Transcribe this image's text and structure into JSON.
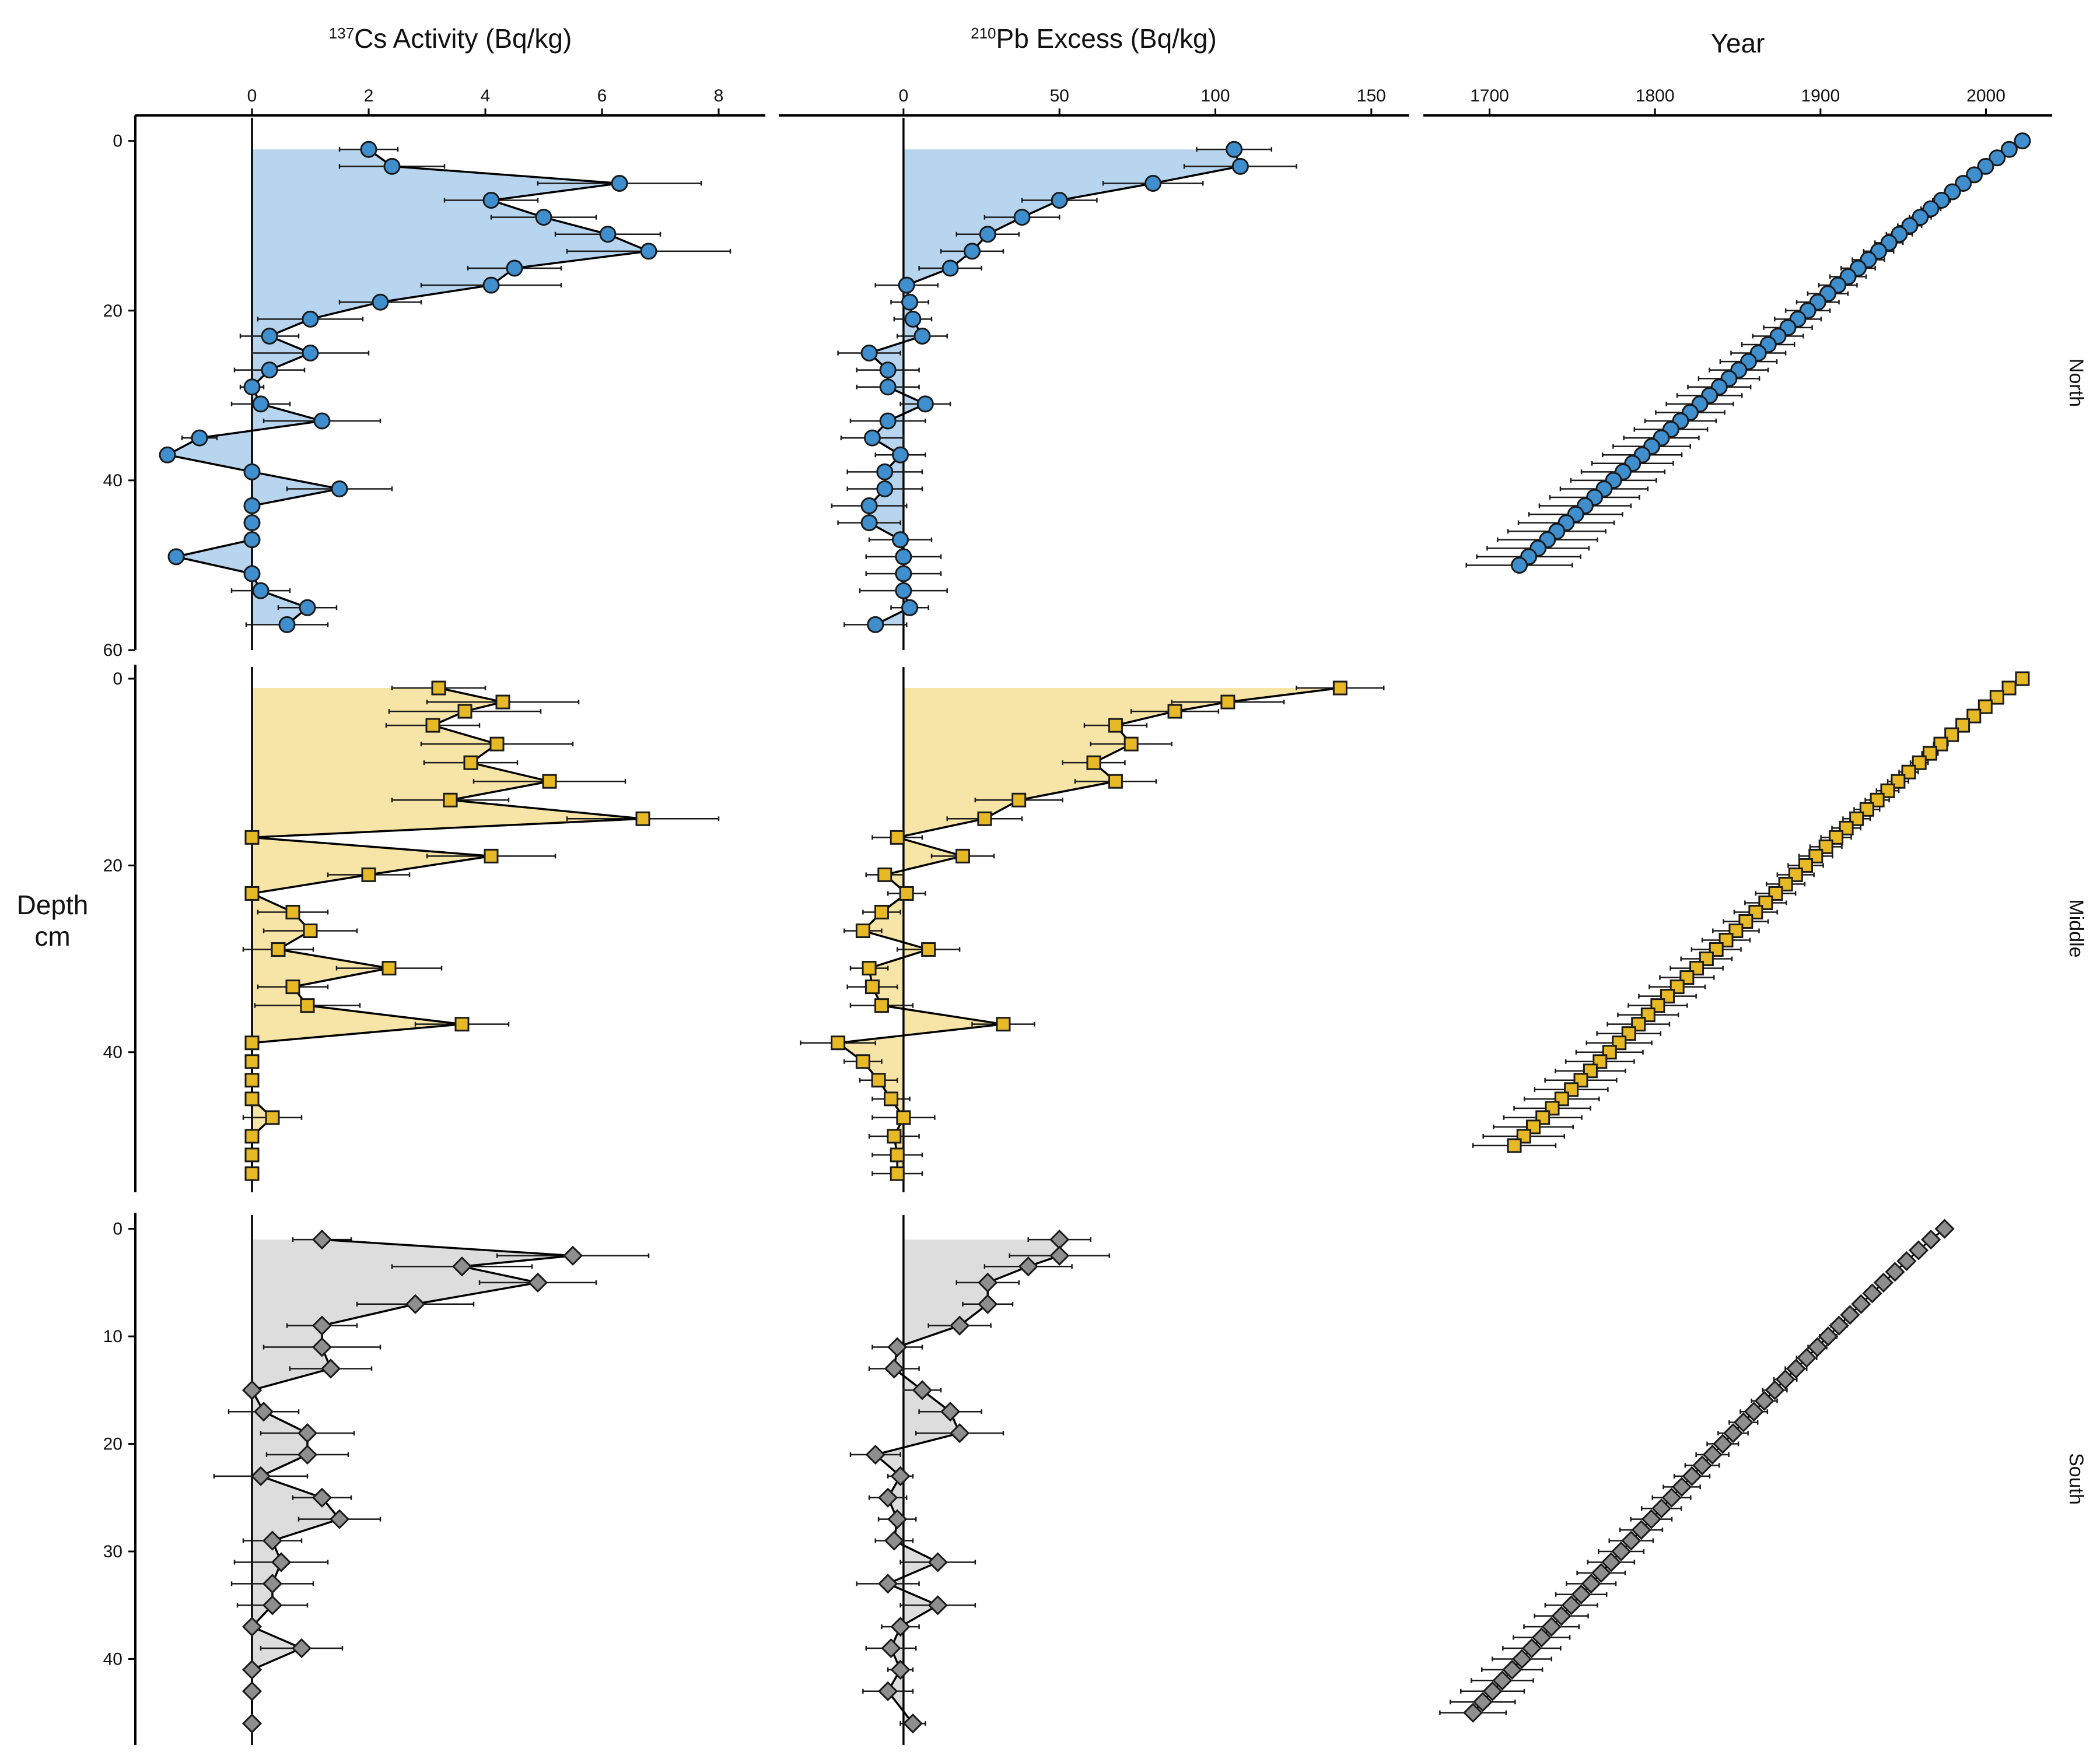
{
  "chart_data": {
    "type": "scatter",
    "ylabel": [
      "Depth",
      "cm"
    ],
    "columns": [
      {
        "id": "cs",
        "title_sup": "137",
        "title_main": "Cs Activity (Bq/kg)",
        "xlim": [
          -2.0,
          8.8
        ],
        "xticks": [
          0,
          2,
          4,
          6,
          8
        ]
      },
      {
        "id": "pb",
        "title_sup": "210",
        "title_main": "Pb Excess (Bq/kg)",
        "xlim": [
          -40,
          162
        ],
        "xticks": [
          0,
          50,
          100,
          150
        ]
      },
      {
        "id": "year",
        "title_sup": "",
        "title_main": "Year",
        "xlim": [
          1660,
          2040
        ],
        "xticks": [
          1700,
          1800,
          1900,
          2000
        ]
      }
    ],
    "sites": [
      {
        "name": "North",
        "marker": "circle",
        "fill": "#3F8FCF",
        "band": "#B7D5EE",
        "ylim": [
          60,
          -3
        ],
        "yticks": [
          0,
          20,
          40,
          60
        ],
        "cs": [
          {
            "y": 1,
            "x": 2.0,
            "err": 0.5
          },
          {
            "y": 3,
            "x": 2.4,
            "err": 0.9
          },
          {
            "y": 5,
            "x": 6.3,
            "err": 1.4
          },
          {
            "y": 7,
            "x": 4.1,
            "err": 0.8
          },
          {
            "y": 9,
            "x": 5.0,
            "err": 0.9
          },
          {
            "y": 11,
            "x": 6.1,
            "err": 0.9
          },
          {
            "y": 13,
            "x": 6.8,
            "err": 1.4
          },
          {
            "y": 15,
            "x": 4.5,
            "err": 0.8
          },
          {
            "y": 17,
            "x": 4.1,
            "err": 1.2
          },
          {
            "y": 19,
            "x": 2.2,
            "err": 0.7
          },
          {
            "y": 21,
            "x": 1.0,
            "err": 0.9
          },
          {
            "y": 23,
            "x": 0.3,
            "err": 0.5
          },
          {
            "y": 25,
            "x": 1.0,
            "err": 1.0
          },
          {
            "y": 27,
            "x": 0.3,
            "err": 0.6
          },
          {
            "y": 29,
            "x": 0.0,
            "err": 0.2
          },
          {
            "y": 31,
            "x": 0.15,
            "err": 0.5
          },
          {
            "y": 33,
            "x": 1.2,
            "err": 1.0
          },
          {
            "y": 35,
            "x": -0.9,
            "err": 0.3
          },
          {
            "y": 37,
            "x": -1.45,
            "err": 0.1
          },
          {
            "y": 39,
            "x": 0.0,
            "err": 0.1
          },
          {
            "y": 41,
            "x": 1.5,
            "err": 0.9
          },
          {
            "y": 43,
            "x": 0.0,
            "err": 0.1
          },
          {
            "y": 45,
            "x": 0.0,
            "err": 0.1
          },
          {
            "y": 47,
            "x": 0.0,
            "err": 0.1
          },
          {
            "y": 49,
            "x": -1.3,
            "err": 0.1
          },
          {
            "y": 51,
            "x": 0.0,
            "err": 0.1
          },
          {
            "y": 53,
            "x": 0.15,
            "err": 0.5
          },
          {
            "y": 55,
            "x": 0.95,
            "err": 0.5
          },
          {
            "y": 57,
            "x": 0.6,
            "err": 0.7
          }
        ],
        "pb": [
          {
            "y": 1,
            "x": 106,
            "err": 12
          },
          {
            "y": 3,
            "x": 108,
            "err": 18
          },
          {
            "y": 5,
            "x": 80,
            "err": 16
          },
          {
            "y": 7,
            "x": 50,
            "err": 12
          },
          {
            "y": 9,
            "x": 38,
            "err": 12
          },
          {
            "y": 11,
            "x": 27,
            "err": 10
          },
          {
            "y": 13,
            "x": 22,
            "err": 10
          },
          {
            "y": 15,
            "x": 15,
            "err": 10
          },
          {
            "y": 17,
            "x": 1,
            "err": 10
          },
          {
            "y": 19,
            "x": 2,
            "err": 6
          },
          {
            "y": 21,
            "x": 3,
            "err": 6
          },
          {
            "y": 23,
            "x": 6,
            "err": 8
          },
          {
            "y": 25,
            "x": -11,
            "err": 10
          },
          {
            "y": 27,
            "x": -5,
            "err": 10
          },
          {
            "y": 29,
            "x": -5,
            "err": 10
          },
          {
            "y": 31,
            "x": 7,
            "err": 8
          },
          {
            "y": 33,
            "x": -5,
            "err": 12
          },
          {
            "y": 35,
            "x": -10,
            "err": 10
          },
          {
            "y": 37,
            "x": -1,
            "err": 8
          },
          {
            "y": 39,
            "x": -6,
            "err": 12
          },
          {
            "y": 41,
            "x": -6,
            "err": 12
          },
          {
            "y": 43,
            "x": -11,
            "err": 12
          },
          {
            "y": 45,
            "x": -11,
            "err": 10
          },
          {
            "y": 47,
            "x": -1,
            "err": 10
          },
          {
            "y": 49,
            "x": 0,
            "err": 12
          },
          {
            "y": 51,
            "x": 0,
            "err": 12
          },
          {
            "y": 53,
            "x": 0,
            "err": 14
          },
          {
            "y": 55,
            "x": 2,
            "err": 6
          },
          {
            "y": 57,
            "x": -9,
            "err": 10
          }
        ],
        "year": {
          "ys": [
            0,
            1,
            2,
            3,
            4,
            5,
            6,
            7,
            8,
            9,
            10,
            11,
            12,
            13,
            14,
            15,
            16,
            17,
            18,
            19,
            20,
            21,
            22,
            23,
            24,
            25,
            26,
            27,
            28,
            29,
            30,
            31,
            32,
            33,
            34,
            35,
            36,
            37,
            38,
            39,
            40,
            41,
            42,
            43,
            44,
            45,
            46,
            47,
            48,
            49,
            50
          ],
          "top": 2022,
          "bottom": 1718,
          "err_top": 1,
          "err_bottom": 32
        }
      },
      {
        "name": "Middle",
        "marker": "square",
        "fill": "#E8B927",
        "band": "#F7E4A7",
        "ylim": [
          55,
          -1.5
        ],
        "yticks": [
          0,
          20,
          40
        ],
        "cs": [
          {
            "y": 1,
            "x": 3.2,
            "err": 0.8
          },
          {
            "y": 2.5,
            "x": 4.3,
            "err": 1.3
          },
          {
            "y": 3.5,
            "x": 3.65,
            "err": 1.3
          },
          {
            "y": 5,
            "x": 3.1,
            "err": 0.8
          },
          {
            "y": 7,
            "x": 4.2,
            "err": 1.3
          },
          {
            "y": 9,
            "x": 3.75,
            "err": 0.8
          },
          {
            "y": 11,
            "x": 5.1,
            "err": 1.3
          },
          {
            "y": 13,
            "x": 3.4,
            "err": 1.0
          },
          {
            "y": 15,
            "x": 6.7,
            "err": 1.3
          },
          {
            "y": 17,
            "x": 0.0,
            "err": 0.1
          },
          {
            "y": 19,
            "x": 4.1,
            "err": 1.1
          },
          {
            "y": 21,
            "x": 2.0,
            "err": 0.7
          },
          {
            "y": 23,
            "x": 0.0,
            "err": 0.1
          },
          {
            "y": 25,
            "x": 0.7,
            "err": 0.6
          },
          {
            "y": 27,
            "x": 1.0,
            "err": 0.8
          },
          {
            "y": 29,
            "x": 0.45,
            "err": 0.6
          },
          {
            "y": 31,
            "x": 2.35,
            "err": 0.9
          },
          {
            "y": 33,
            "x": 0.7,
            "err": 0.6
          },
          {
            "y": 35,
            "x": 0.95,
            "err": 0.9
          },
          {
            "y": 37,
            "x": 3.6,
            "err": 0.8
          },
          {
            "y": 39,
            "x": 0.0,
            "err": 0.1
          },
          {
            "y": 41,
            "x": 0.0,
            "err": 0.1
          },
          {
            "y": 43,
            "x": 0.0,
            "err": 0.1
          },
          {
            "y": 45,
            "x": 0.0,
            "err": 0.1
          },
          {
            "y": 47,
            "x": 0.35,
            "err": 0.5
          },
          {
            "y": 49,
            "x": 0.0,
            "err": 0.1
          },
          {
            "y": 51,
            "x": 0.0,
            "err": 0.1
          },
          {
            "y": 53,
            "x": 0.0,
            "err": 0.1
          }
        ],
        "pb": [
          {
            "y": 1,
            "x": 140,
            "err": 14
          },
          {
            "y": 2.5,
            "x": 104,
            "err": 18
          },
          {
            "y": 3.5,
            "x": 87,
            "err": 14
          },
          {
            "y": 5,
            "x": 68,
            "err": 10
          },
          {
            "y": 7,
            "x": 73,
            "err": 13
          },
          {
            "y": 9,
            "x": 61,
            "err": 10
          },
          {
            "y": 11,
            "x": 68,
            "err": 13
          },
          {
            "y": 13,
            "x": 37,
            "err": 14
          },
          {
            "y": 15,
            "x": 26,
            "err": 12
          },
          {
            "y": 17,
            "x": -2,
            "err": 8
          },
          {
            "y": 19,
            "x": 19,
            "err": 10
          },
          {
            "y": 21,
            "x": -6,
            "err": 6
          },
          {
            "y": 23,
            "x": 1,
            "err": 6
          },
          {
            "y": 25,
            "x": -7,
            "err": 6
          },
          {
            "y": 27,
            "x": -13,
            "err": 6
          },
          {
            "y": 29,
            "x": 8,
            "err": 10
          },
          {
            "y": 31,
            "x": -11,
            "err": 6
          },
          {
            "y": 33,
            "x": -10,
            "err": 8
          },
          {
            "y": 35,
            "x": -7,
            "err": 10
          },
          {
            "y": 37,
            "x": 32,
            "err": 10
          },
          {
            "y": 39,
            "x": -21,
            "err": 12
          },
          {
            "y": 41,
            "x": -13,
            "err": 6
          },
          {
            "y": 43,
            "x": -8,
            "err": 6
          },
          {
            "y": 45,
            "x": -4,
            "err": 6
          },
          {
            "y": 47,
            "x": 0,
            "err": 10
          },
          {
            "y": 49,
            "x": -3,
            "err": 8
          },
          {
            "y": 51,
            "x": -2,
            "err": 8
          },
          {
            "y": 53,
            "x": -2,
            "err": 8
          }
        ],
        "year": {
          "ys": [
            0,
            1,
            2,
            3,
            4,
            5,
            6,
            7,
            8,
            9,
            10,
            11,
            12,
            13,
            14,
            15,
            16,
            17,
            18,
            19,
            20,
            21,
            22,
            23,
            24,
            25,
            26,
            27,
            28,
            29,
            30,
            31,
            32,
            33,
            34,
            35,
            36,
            37,
            38,
            39,
            40,
            41,
            42,
            43,
            44,
            45,
            46,
            47,
            48,
            49,
            50
          ],
          "top": 2022,
          "bottom": 1715,
          "err_top": 1,
          "err_bottom": 25
        }
      },
      {
        "name": "South",
        "marker": "diamond",
        "fill": "#8E8E8E",
        "band": "#DDDDDD",
        "ylim": [
          48,
          -1.5
        ],
        "yticks": [
          0,
          10,
          20,
          30,
          40
        ],
        "cs": [
          {
            "y": 1,
            "x": 1.2,
            "err": 0.5
          },
          {
            "y": 2.5,
            "x": 5.5,
            "err": 1.3
          },
          {
            "y": 3.5,
            "x": 3.6,
            "err": 1.2
          },
          {
            "y": 5,
            "x": 4.9,
            "err": 1.0
          },
          {
            "y": 7,
            "x": 2.8,
            "err": 1.0
          },
          {
            "y": 9,
            "x": 1.2,
            "err": 0.6
          },
          {
            "y": 11,
            "x": 1.2,
            "err": 1.0
          },
          {
            "y": 13,
            "x": 1.35,
            "err": 0.7
          },
          {
            "y": 15,
            "x": 0.0,
            "err": 0.1
          },
          {
            "y": 17,
            "x": 0.2,
            "err": 0.6
          },
          {
            "y": 19,
            "x": 0.95,
            "err": 0.8
          },
          {
            "y": 21,
            "x": 0.95,
            "err": 0.7
          },
          {
            "y": 23,
            "x": 0.15,
            "err": 0.8
          },
          {
            "y": 25,
            "x": 1.2,
            "err": 0.5
          },
          {
            "y": 27,
            "x": 1.5,
            "err": 0.7
          },
          {
            "y": 29,
            "x": 0.35,
            "err": 0.5
          },
          {
            "y": 31,
            "x": 0.5,
            "err": 0.8
          },
          {
            "y": 33,
            "x": 0.35,
            "err": 0.7
          },
          {
            "y": 35,
            "x": 0.35,
            "err": 0.6
          },
          {
            "y": 37,
            "x": 0.0,
            "err": 0.1
          },
          {
            "y": 39,
            "x": 0.85,
            "err": 0.7
          },
          {
            "y": 41,
            "x": 0.0,
            "err": 0.1
          },
          {
            "y": 43,
            "x": 0.0,
            "err": 0.1
          },
          {
            "y": 46,
            "x": 0.0,
            "err": 0.1
          }
        ],
        "pb": [
          {
            "y": 1,
            "x": 50,
            "err": 10
          },
          {
            "y": 2.5,
            "x": 50,
            "err": 16
          },
          {
            "y": 3.5,
            "x": 40,
            "err": 14
          },
          {
            "y": 5,
            "x": 27,
            "err": 10
          },
          {
            "y": 7,
            "x": 27,
            "err": 8
          },
          {
            "y": 9,
            "x": 18,
            "err": 10
          },
          {
            "y": 11,
            "x": -2,
            "err": 8
          },
          {
            "y": 13,
            "x": -3,
            "err": 8
          },
          {
            "y": 15,
            "x": 6,
            "err": 6
          },
          {
            "y": 17,
            "x": 15,
            "err": 10
          },
          {
            "y": 19,
            "x": 18,
            "err": 14
          },
          {
            "y": 21,
            "x": -9,
            "err": 8
          },
          {
            "y": 23,
            "x": -1,
            "err": 4
          },
          {
            "y": 25,
            "x": -5,
            "err": 6
          },
          {
            "y": 27,
            "x": -2,
            "err": 6
          },
          {
            "y": 29,
            "x": -3,
            "err": 6
          },
          {
            "y": 31,
            "x": 11,
            "err": 12
          },
          {
            "y": 33,
            "x": -5,
            "err": 10
          },
          {
            "y": 35,
            "x": 11,
            "err": 12
          },
          {
            "y": 37,
            "x": -1,
            "err": 6
          },
          {
            "y": 39,
            "x": -4,
            "err": 8
          },
          {
            "y": 41,
            "x": -1,
            "err": 4
          },
          {
            "y": 43,
            "x": -5,
            "err": 8
          },
          {
            "y": 46,
            "x": 3,
            "err": 4
          }
        ],
        "year": {
          "ys": [
            0,
            1,
            2,
            3,
            4,
            5,
            6,
            7,
            8,
            9,
            10,
            11,
            12,
            13,
            14,
            15,
            16,
            17,
            18,
            19,
            20,
            21,
            22,
            23,
            24,
            25,
            26,
            27,
            28,
            29,
            30,
            31,
            32,
            33,
            34,
            35,
            36,
            37,
            38,
            39,
            40,
            41,
            42,
            43,
            44,
            45
          ],
          "top": 1975,
          "bottom": 1690,
          "err_top": 1,
          "err_bottom": 20
        }
      }
    ]
  }
}
